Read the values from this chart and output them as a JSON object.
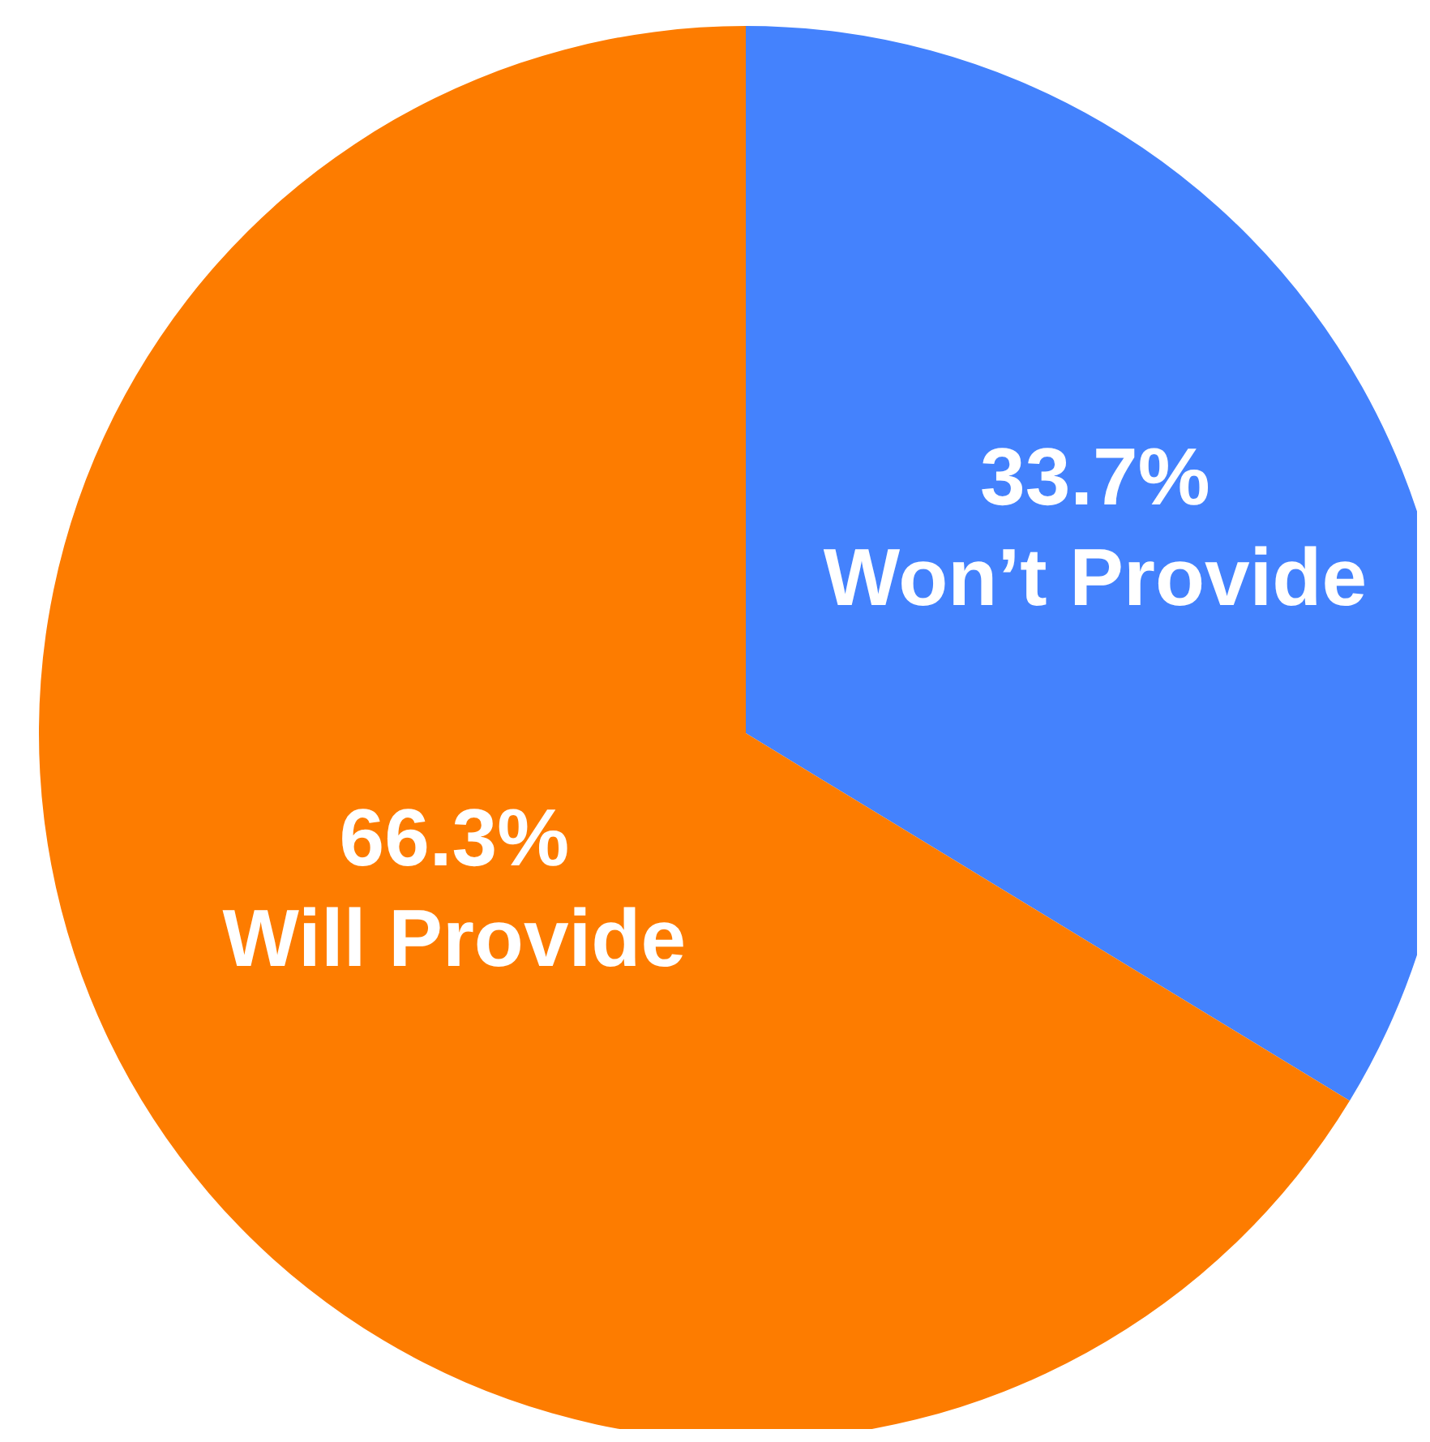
{
  "chart_data": {
    "type": "pie",
    "categories": [
      "Won’t Provide",
      "Will Provide"
    ],
    "values": [
      33.7,
      66.3
    ],
    "colors": [
      "#4482fd",
      "#fd7c00"
    ],
    "value_labels": [
      "33.7%",
      "66.3%"
    ]
  }
}
